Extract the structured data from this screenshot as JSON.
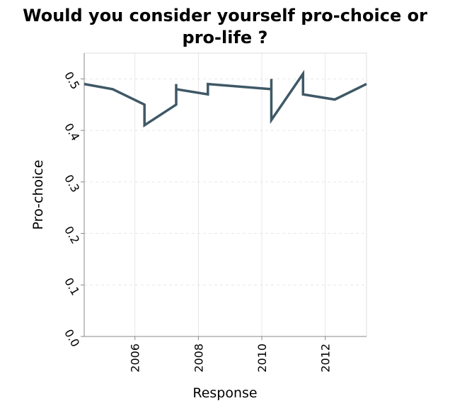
{
  "chart_data": {
    "type": "line",
    "title_lines": [
      "Would you consider yourself pro-choice or",
      "pro-life ?"
    ],
    "xlabel": "Response",
    "ylabel": "Pro-choice",
    "xlim": [
      2004.4,
      2013.3
    ],
    "ylim": [
      0,
      0.55
    ],
    "x_ticks": [
      2006,
      2008,
      2010,
      2012
    ],
    "x_tick_labels": [
      "2006",
      "2008",
      "2010",
      "2012"
    ],
    "y_ticks": [
      0,
      0.1,
      0.2,
      0.3,
      0.4,
      0.5
    ],
    "y_tick_labels": [
      "0.0",
      "0.1",
      "0.2",
      "0.3",
      "0.4",
      "0.5"
    ],
    "grid": true,
    "line_color": "#3f5866",
    "series": [
      {
        "x": [
          2004.4,
          2005.3,
          2006.3,
          2006.3,
          2007.3,
          2007.3,
          2007.3,
          2008.3,
          2008.3,
          2010.3,
          2010.3,
          2010.3,
          2011.3,
          2011.3,
          2012.3,
          2013.3
        ],
        "values": [
          0.49,
          0.48,
          0.45,
          0.41,
          0.45,
          0.49,
          0.48,
          0.47,
          0.49,
          0.48,
          0.5,
          0.42,
          0.51,
          0.47,
          0.46,
          0.49
        ]
      }
    ]
  }
}
